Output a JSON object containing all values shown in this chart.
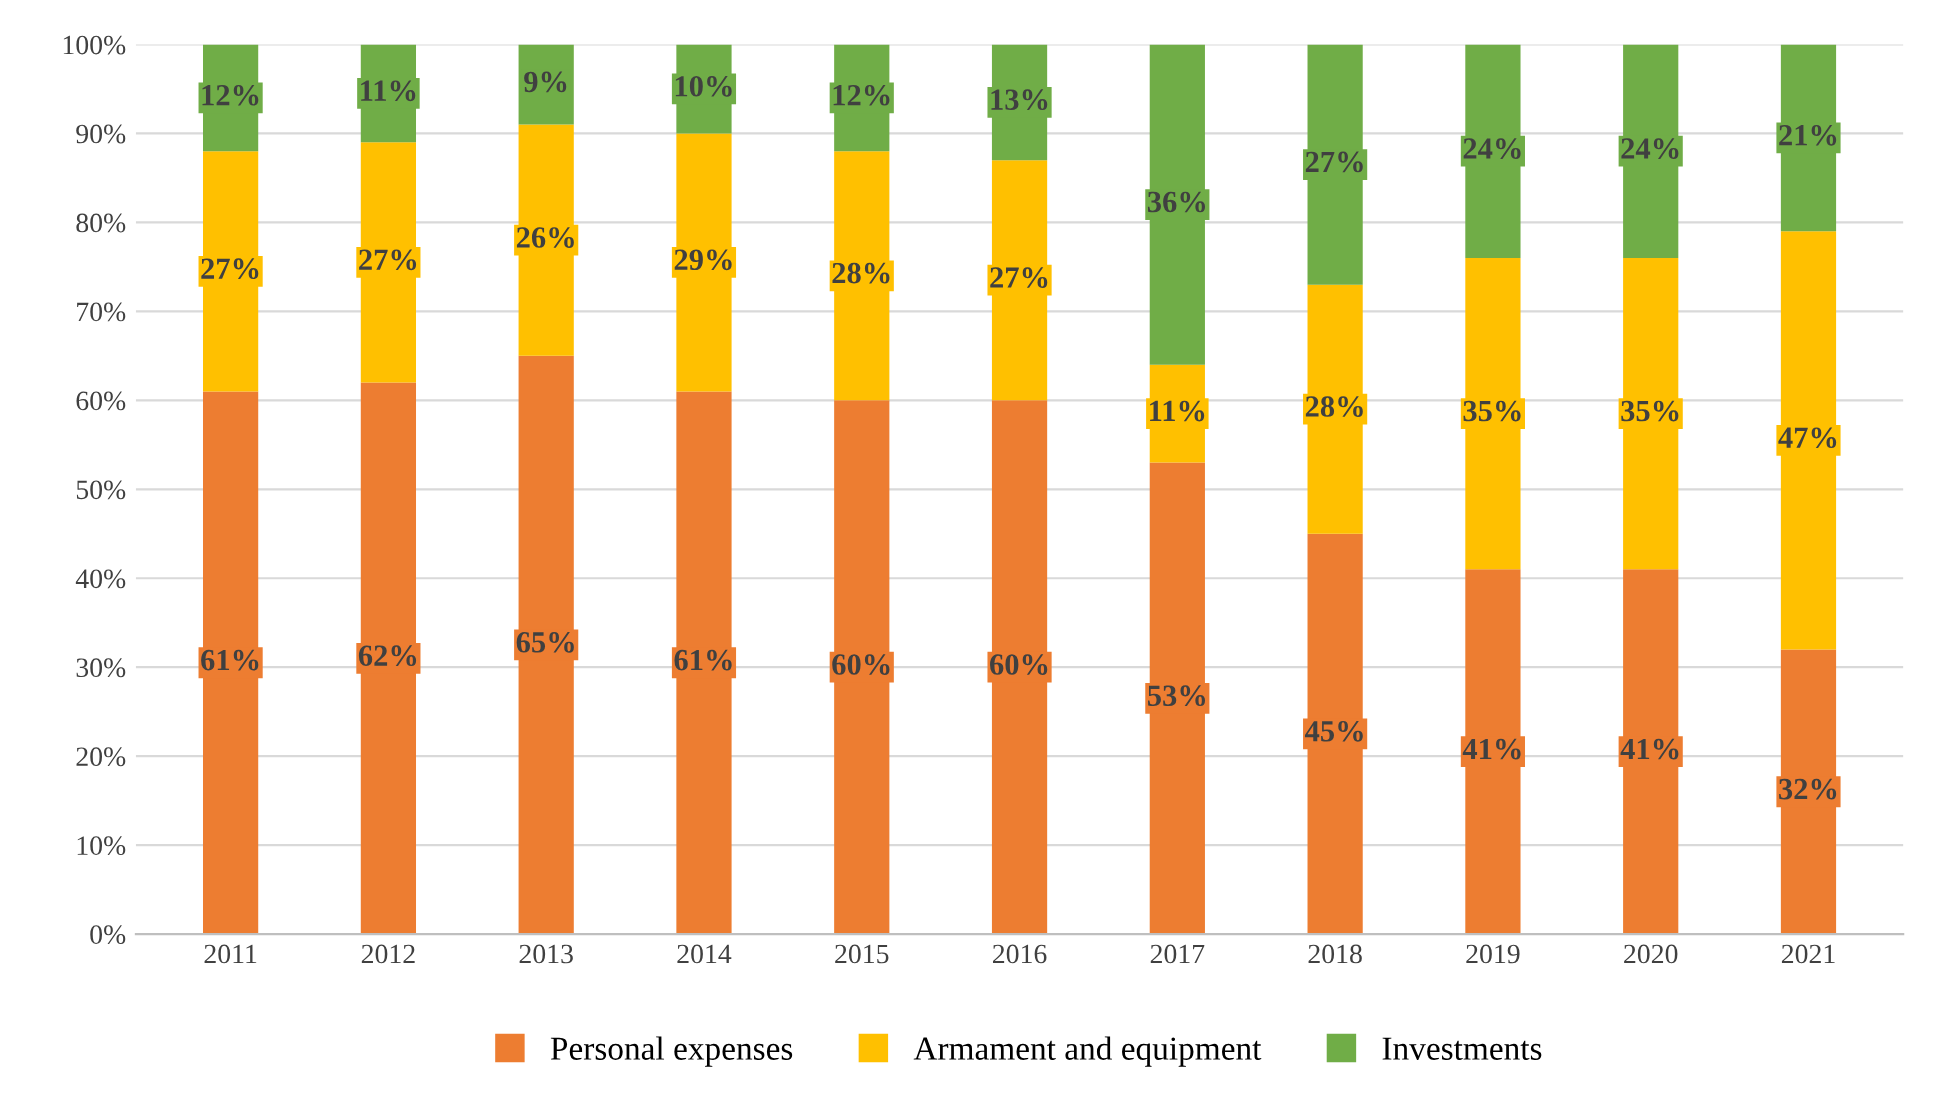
{
  "chart_data": {
    "type": "bar",
    "stacked": true,
    "categories": [
      "2011",
      "2012",
      "2013",
      "2014",
      "2015",
      "2016",
      "2017",
      "2018",
      "2019",
      "2020",
      "2021"
    ],
    "series": [
      {
        "name": "Personal expenses",
        "color": "#ed7d31",
        "values": [
          61,
          62,
          65,
          61,
          60,
          60,
          53,
          45,
          41,
          41,
          32
        ],
        "value_labels": [
          "61%",
          "62%",
          "65%",
          "61%",
          "60%",
          "60%",
          "53%",
          "45%",
          "41%",
          "41%",
          "32%"
        ]
      },
      {
        "name": "Armament and equipment",
        "color": "#ffc000",
        "values": [
          27,
          27,
          26,
          29,
          28,
          27,
          11,
          28,
          35,
          35,
          47
        ],
        "value_labels": [
          "27%",
          "27%",
          "26%",
          "29%",
          "28%",
          "27%",
          "11%",
          "28%",
          "35%",
          "35%",
          "47%"
        ]
      },
      {
        "name": "Investments",
        "color": "#70ad47",
        "values": [
          12,
          11,
          9,
          10,
          12,
          13,
          36,
          27,
          24,
          24,
          21
        ],
        "value_labels": [
          "12%",
          "11%",
          "9%",
          "10%",
          "12%",
          "13%",
          "36%",
          "27%",
          "24%",
          "24%",
          "21%"
        ]
      }
    ],
    "ylim": [
      0,
      100
    ],
    "yticks": [
      {
        "value": 0,
        "label": "0%"
      },
      {
        "value": 10,
        "label": "10%"
      },
      {
        "value": 20,
        "label": "20%"
      },
      {
        "value": 30,
        "label": "30%"
      },
      {
        "value": 40,
        "label": "40%"
      },
      {
        "value": 50,
        "label": "50%"
      },
      {
        "value": 60,
        "label": "60%"
      },
      {
        "value": 70,
        "label": "70%"
      },
      {
        "value": 80,
        "label": "80%"
      },
      {
        "value": 90,
        "label": "90%"
      },
      {
        "value": 100,
        "label": "100%"
      }
    ],
    "grid": "y",
    "legend": "bottom"
  }
}
